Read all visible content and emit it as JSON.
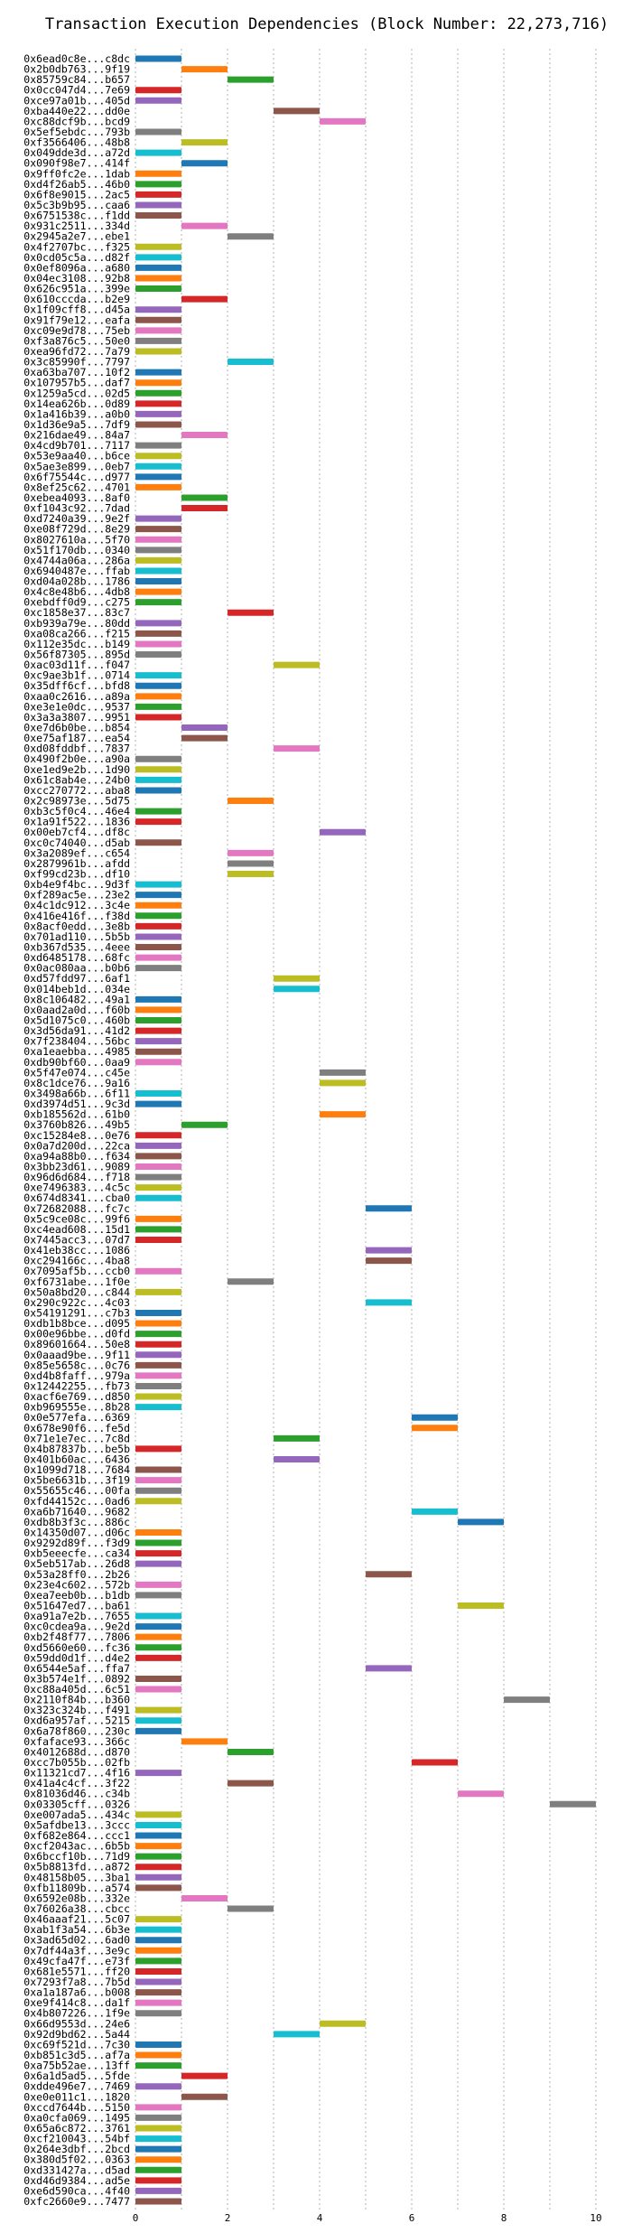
{
  "chart_data": {
    "type": "bar",
    "orientation": "horizontal",
    "title": "Transaction Execution Dependencies (Block Number: 22,273,716)",
    "xlim": [
      0,
      10
    ],
    "xticks": [
      0,
      2,
      4,
      6,
      8,
      10
    ],
    "grid": true,
    "palette": [
      "#1f77b4",
      "#ff7f0e",
      "#2ca02c",
      "#d62728",
      "#9467bd",
      "#8c564b",
      "#e377c2",
      "#7f7f7f",
      "#bcbd22",
      "#17becf"
    ],
    "rows": [
      {
        "label": "0x6ead0c8e...c8dc",
        "start": 0,
        "end": 1
      },
      {
        "label": "0x2b0db763...9f19",
        "start": 1,
        "end": 2
      },
      {
        "label": "0x85759c84...b657",
        "start": 2,
        "end": 3
      },
      {
        "label": "0x0cc047d4...7e69",
        "start": 0,
        "end": 1
      },
      {
        "label": "0xce97a01b...405d",
        "start": 0,
        "end": 1
      },
      {
        "label": "0xba440e22...dd0e",
        "start": 3,
        "end": 4
      },
      {
        "label": "0xc88dcf9b...bcd9",
        "start": 4,
        "end": 5
      },
      {
        "label": "0x5ef5ebdc...793b",
        "start": 0,
        "end": 1
      },
      {
        "label": "0xf3566406...48b8",
        "start": 1,
        "end": 2
      },
      {
        "label": "0x049dde3d...a72d",
        "start": 0,
        "end": 1
      },
      {
        "label": "0x090f98e7...414f",
        "start": 1,
        "end": 2
      },
      {
        "label": "0x9ff0fc2e...1dab",
        "start": 0,
        "end": 1
      },
      {
        "label": "0xd4f26ab5...46b0",
        "start": 0,
        "end": 1
      },
      {
        "label": "0x6f8e9015...2ac5",
        "start": 0,
        "end": 1
      },
      {
        "label": "0x5c3b9b95...caa6",
        "start": 0,
        "end": 1
      },
      {
        "label": "0x6751538c...f1dd",
        "start": 0,
        "end": 1
      },
      {
        "label": "0x931c2511...334d",
        "start": 1,
        "end": 2
      },
      {
        "label": "0x2945a2e7...ebe1",
        "start": 2,
        "end": 3
      },
      {
        "label": "0x4f2707bc...f325",
        "start": 0,
        "end": 1
      },
      {
        "label": "0x0cd05c5a...d82f",
        "start": 0,
        "end": 1
      },
      {
        "label": "0x0ef8096a...a680",
        "start": 0,
        "end": 1
      },
      {
        "label": "0x04ec3108...92b8",
        "start": 0,
        "end": 1
      },
      {
        "label": "0x626c951a...399e",
        "start": 0,
        "end": 1
      },
      {
        "label": "0x610cccda...b2e9",
        "start": 1,
        "end": 2
      },
      {
        "label": "0x1f09cff8...d45a",
        "start": 0,
        "end": 1
      },
      {
        "label": "0x91f79e12...eafa",
        "start": 0,
        "end": 1
      },
      {
        "label": "0xc09e9d78...75eb",
        "start": 0,
        "end": 1
      },
      {
        "label": "0xf3a876c5...50e0",
        "start": 0,
        "end": 1
      },
      {
        "label": "0xea96fd72...7a79",
        "start": 0,
        "end": 1
      },
      {
        "label": "0x3c85990f...7797",
        "start": 2,
        "end": 3
      },
      {
        "label": "0xa63ba707...10f2",
        "start": 0,
        "end": 1
      },
      {
        "label": "0x107957b5...daf7",
        "start": 0,
        "end": 1
      },
      {
        "label": "0x1259a5cd...02d5",
        "start": 0,
        "end": 1
      },
      {
        "label": "0x14ea626b...0d89",
        "start": 0,
        "end": 1
      },
      {
        "label": "0x1a416b39...a0b0",
        "start": 0,
        "end": 1
      },
      {
        "label": "0x1d36e9a5...7df9",
        "start": 0,
        "end": 1
      },
      {
        "label": "0x216dae49...84a7",
        "start": 1,
        "end": 2
      },
      {
        "label": "0x4cd9b701...7117",
        "start": 0,
        "end": 1
      },
      {
        "label": "0x53e9aa40...b6ce",
        "start": 0,
        "end": 1
      },
      {
        "label": "0x5ae3e899...0eb7",
        "start": 0,
        "end": 1
      },
      {
        "label": "0x6f75544c...d977",
        "start": 0,
        "end": 1
      },
      {
        "label": "0x8ef25c62...4701",
        "start": 0,
        "end": 1
      },
      {
        "label": "0xebea4093...8af0",
        "start": 1,
        "end": 2
      },
      {
        "label": "0xf1043c92...7dad",
        "start": 1,
        "end": 2
      },
      {
        "label": "0xd7240a39...9e2f",
        "start": 0,
        "end": 1
      },
      {
        "label": "0xe08f729d...8e29",
        "start": 0,
        "end": 1
      },
      {
        "label": "0x8027610a...5f70",
        "start": 0,
        "end": 1
      },
      {
        "label": "0x51f170db...0340",
        "start": 0,
        "end": 1
      },
      {
        "label": "0x4744a06a...286a",
        "start": 0,
        "end": 1
      },
      {
        "label": "0x6940487e...ffab",
        "start": 0,
        "end": 1
      },
      {
        "label": "0xd04a028b...1786",
        "start": 0,
        "end": 1
      },
      {
        "label": "0x4c8e48b6...4db8",
        "start": 0,
        "end": 1
      },
      {
        "label": "0xebdff0d9...c275",
        "start": 0,
        "end": 1
      },
      {
        "label": "0xc1858e37...83c7",
        "start": 2,
        "end": 3
      },
      {
        "label": "0xb939a79e...80dd",
        "start": 0,
        "end": 1
      },
      {
        "label": "0xa08ca266...f215",
        "start": 0,
        "end": 1
      },
      {
        "label": "0x112e35dc...b149",
        "start": 0,
        "end": 1
      },
      {
        "label": "0x56f87305...895d",
        "start": 0,
        "end": 1
      },
      {
        "label": "0xac03d11f...f047",
        "start": 3,
        "end": 4
      },
      {
        "label": "0xc9ae3b1f...0714",
        "start": 0,
        "end": 1
      },
      {
        "label": "0x35dff6cf...bfd8",
        "start": 0,
        "end": 1
      },
      {
        "label": "0xaa0c2616...a89a",
        "start": 0,
        "end": 1
      },
      {
        "label": "0xe3e1e0dc...9537",
        "start": 0,
        "end": 1
      },
      {
        "label": "0x3a3a3807...9951",
        "start": 0,
        "end": 1
      },
      {
        "label": "0xe7d6b0be...b854",
        "start": 1,
        "end": 2
      },
      {
        "label": "0xe75af187...ea54",
        "start": 1,
        "end": 2
      },
      {
        "label": "0xd08fddbf...7837",
        "start": 3,
        "end": 4
      },
      {
        "label": "0x490f2b0e...a90a",
        "start": 0,
        "end": 1
      },
      {
        "label": "0xe1ed9e2b...1d90",
        "start": 0,
        "end": 1
      },
      {
        "label": "0x61c8ab4e...24b0",
        "start": 0,
        "end": 1
      },
      {
        "label": "0xcc270772...aba8",
        "start": 0,
        "end": 1
      },
      {
        "label": "0x2c98973e...5d75",
        "start": 2,
        "end": 3
      },
      {
        "label": "0xb3c5f0c4...46e4",
        "start": 0,
        "end": 1
      },
      {
        "label": "0x1a91f522...1836",
        "start": 0,
        "end": 1
      },
      {
        "label": "0x00eb7cf4...df8c",
        "start": 4,
        "end": 5
      },
      {
        "label": "0xc0c74040...d5ab",
        "start": 0,
        "end": 1
      },
      {
        "label": "0x3a2089ef...c654",
        "start": 2,
        "end": 3
      },
      {
        "label": "0x2879961b...afdd",
        "start": 2,
        "end": 3
      },
      {
        "label": "0xf99cd23b...df10",
        "start": 2,
        "end": 3
      },
      {
        "label": "0xb4e9f4bc...9d3f",
        "start": 0,
        "end": 1
      },
      {
        "label": "0xf289ac5e...23e2",
        "start": 0,
        "end": 1
      },
      {
        "label": "0x4c1dc912...3c4e",
        "start": 0,
        "end": 1
      },
      {
        "label": "0x416e416f...f38d",
        "start": 0,
        "end": 1
      },
      {
        "label": "0x8acf0edd...3e8b",
        "start": 0,
        "end": 1
      },
      {
        "label": "0x701ad110...5b5b",
        "start": 0,
        "end": 1
      },
      {
        "label": "0xb367d535...4eee",
        "start": 0,
        "end": 1
      },
      {
        "label": "0xd6485178...68fc",
        "start": 0,
        "end": 1
      },
      {
        "label": "0x0ac080aa...b0b6",
        "start": 0,
        "end": 1
      },
      {
        "label": "0xd57fdd97...6af1",
        "start": 3,
        "end": 4
      },
      {
        "label": "0x014beb1d...034e",
        "start": 3,
        "end": 4
      },
      {
        "label": "0x8c106482...49a1",
        "start": 0,
        "end": 1
      },
      {
        "label": "0x0aad2a0d...f60b",
        "start": 0,
        "end": 1
      },
      {
        "label": "0x5d1075c0...460b",
        "start": 0,
        "end": 1
      },
      {
        "label": "0x3d56da91...41d2",
        "start": 0,
        "end": 1
      },
      {
        "label": "0x7f238404...56bc",
        "start": 0,
        "end": 1
      },
      {
        "label": "0xa1eaebba...4985",
        "start": 0,
        "end": 1
      },
      {
        "label": "0xdb90bf60...0aa9",
        "start": 0,
        "end": 1
      },
      {
        "label": "0x5f47e074...c45e",
        "start": 4,
        "end": 5
      },
      {
        "label": "0x8c1dce76...9a16",
        "start": 4,
        "end": 5
      },
      {
        "label": "0x3498a66b...6f11",
        "start": 0,
        "end": 1
      },
      {
        "label": "0xd3974d51...9c3d",
        "start": 0,
        "end": 1
      },
      {
        "label": "0xb185562d...61b0",
        "start": 4,
        "end": 5
      },
      {
        "label": "0x3760b826...49b5",
        "start": 1,
        "end": 2
      },
      {
        "label": "0xc15284e8...0e76",
        "start": 0,
        "end": 1
      },
      {
        "label": "0x0a7d200d...22ca",
        "start": 0,
        "end": 1
      },
      {
        "label": "0xa94a88b0...f634",
        "start": 0,
        "end": 1
      },
      {
        "label": "0x3bb23d61...9089",
        "start": 0,
        "end": 1
      },
      {
        "label": "0x96d6d684...f718",
        "start": 0,
        "end": 1
      },
      {
        "label": "0xe7496383...4c5c",
        "start": 0,
        "end": 1
      },
      {
        "label": "0x674d8341...cba0",
        "start": 0,
        "end": 1
      },
      {
        "label": "0x72682088...fc7c",
        "start": 5,
        "end": 6
      },
      {
        "label": "0x5c9ce08c...99f6",
        "start": 0,
        "end": 1
      },
      {
        "label": "0xc4ead608...15d1",
        "start": 0,
        "end": 1
      },
      {
        "label": "0x7445acc3...07d7",
        "start": 0,
        "end": 1
      },
      {
        "label": "0x41eb38cc...1086",
        "start": 5,
        "end": 6
      },
      {
        "label": "0xc294166c...4ba8",
        "start": 5,
        "end": 6
      },
      {
        "label": "0x7095af5b...ccb0",
        "start": 0,
        "end": 1
      },
      {
        "label": "0xf6731abe...1f0e",
        "start": 2,
        "end": 3
      },
      {
        "label": "0x50a8bd20...c844",
        "start": 0,
        "end": 1
      },
      {
        "label": "0x290c922c...4c03",
        "start": 5,
        "end": 6
      },
      {
        "label": "0x54191291...c7b3",
        "start": 0,
        "end": 1
      },
      {
        "label": "0xdb1b8bce...d095",
        "start": 0,
        "end": 1
      },
      {
        "label": "0x00e96bbe...d0fd",
        "start": 0,
        "end": 1
      },
      {
        "label": "0x89601664...50e8",
        "start": 0,
        "end": 1
      },
      {
        "label": "0x0aaad9be...9f11",
        "start": 0,
        "end": 1
      },
      {
        "label": "0x85e5658c...0c76",
        "start": 0,
        "end": 1
      },
      {
        "label": "0xd4b8faff...979a",
        "start": 0,
        "end": 1
      },
      {
        "label": "0x12442255...fb73",
        "start": 0,
        "end": 1
      },
      {
        "label": "0xacf6e769...d850",
        "start": 0,
        "end": 1
      },
      {
        "label": "0xb969555e...8b28",
        "start": 0,
        "end": 1
      },
      {
        "label": "0x0e577efa...6369",
        "start": 6,
        "end": 7
      },
      {
        "label": "0x678e90f6...fe5d",
        "start": 6,
        "end": 7
      },
      {
        "label": "0x71e1e7ec...7c8d",
        "start": 3,
        "end": 4
      },
      {
        "label": "0x4b87837b...be5b",
        "start": 0,
        "end": 1
      },
      {
        "label": "0x401b60ac...6436",
        "start": 3,
        "end": 4
      },
      {
        "label": "0x1099d718...7684",
        "start": 0,
        "end": 1
      },
      {
        "label": "0x5be6631b...3f19",
        "start": 0,
        "end": 1
      },
      {
        "label": "0x55655c46...00fa",
        "start": 0,
        "end": 1
      },
      {
        "label": "0xfd44152c...0ad6",
        "start": 0,
        "end": 1
      },
      {
        "label": "0xa6b71640...9682",
        "start": 6,
        "end": 7
      },
      {
        "label": "0xdb8b3f3c...886c",
        "start": 7,
        "end": 8
      },
      {
        "label": "0x14350d07...d06c",
        "start": 0,
        "end": 1
      },
      {
        "label": "0x9292d89f...f3d9",
        "start": 0,
        "end": 1
      },
      {
        "label": "0xb5eeecfe...ca34",
        "start": 0,
        "end": 1
      },
      {
        "label": "0x5eb517ab...26d8",
        "start": 0,
        "end": 1
      },
      {
        "label": "0x53a28ff0...2b26",
        "start": 5,
        "end": 6
      },
      {
        "label": "0x23e4c602...572b",
        "start": 0,
        "end": 1
      },
      {
        "label": "0xea7eeb0b...b1db",
        "start": 0,
        "end": 1
      },
      {
        "label": "0x51647ed7...ba61",
        "start": 7,
        "end": 8
      },
      {
        "label": "0xa91a7e2b...7655",
        "start": 0,
        "end": 1
      },
      {
        "label": "0xc0cdea9a...9e2d",
        "start": 0,
        "end": 1
      },
      {
        "label": "0xb2f48f77...7806",
        "start": 0,
        "end": 1
      },
      {
        "label": "0xd5660e60...fc36",
        "start": 0,
        "end": 1
      },
      {
        "label": "0x59dd0d1f...d4e2",
        "start": 0,
        "end": 1
      },
      {
        "label": "0x6544e5af...ffa7",
        "start": 5,
        "end": 6
      },
      {
        "label": "0x3b574e1f...0892",
        "start": 0,
        "end": 1
      },
      {
        "label": "0xc88a405d...6c51",
        "start": 0,
        "end": 1
      },
      {
        "label": "0x2110f84b...b360",
        "start": 8,
        "end": 9
      },
      {
        "label": "0x323c324b...f491",
        "start": 0,
        "end": 1
      },
      {
        "label": "0xd6a957af...5215",
        "start": 0,
        "end": 1
      },
      {
        "label": "0x6a78f860...230c",
        "start": 0,
        "end": 1
      },
      {
        "label": "0xfaface93...366c",
        "start": 1,
        "end": 2
      },
      {
        "label": "0x4012688d...d870",
        "start": 2,
        "end": 3
      },
      {
        "label": "0xcc7b055b...02fb",
        "start": 6,
        "end": 7
      },
      {
        "label": "0x11321cd7...4f16",
        "start": 0,
        "end": 1
      },
      {
        "label": "0x41a4c4cf...3f22",
        "start": 2,
        "end": 3
      },
      {
        "label": "0x81036d46...c34b",
        "start": 7,
        "end": 8
      },
      {
        "label": "0x03305cff...0326",
        "start": 9,
        "end": 10
      },
      {
        "label": "0xe007ada5...434c",
        "start": 0,
        "end": 1
      },
      {
        "label": "0x5afdbe13...3ccc",
        "start": 0,
        "end": 1
      },
      {
        "label": "0xf682e864...ccc1",
        "start": 0,
        "end": 1
      },
      {
        "label": "0xcf2043ac...6b5b",
        "start": 0,
        "end": 1
      },
      {
        "label": "0x6bccf10b...71d9",
        "start": 0,
        "end": 1
      },
      {
        "label": "0x5b8813fd...a872",
        "start": 0,
        "end": 1
      },
      {
        "label": "0x48158b05...3ba1",
        "start": 0,
        "end": 1
      },
      {
        "label": "0xfb11809b...a574",
        "start": 0,
        "end": 1
      },
      {
        "label": "0x6592e08b...332e",
        "start": 1,
        "end": 2
      },
      {
        "label": "0x76026a38...cbcc",
        "start": 2,
        "end": 3
      },
      {
        "label": "0x46aaaf21...5c07",
        "start": 0,
        "end": 1
      },
      {
        "label": "0xab1f3a54...6b3e",
        "start": 0,
        "end": 1
      },
      {
        "label": "0x3ad65d02...6ad0",
        "start": 0,
        "end": 1
      },
      {
        "label": "0x7df44a3f...3e9c",
        "start": 0,
        "end": 1
      },
      {
        "label": "0x49cfa47f...e73f",
        "start": 0,
        "end": 1
      },
      {
        "label": "0x681e5571...ff20",
        "start": 0,
        "end": 1
      },
      {
        "label": "0x7293f7a8...7b5d",
        "start": 0,
        "end": 1
      },
      {
        "label": "0xa1a187a6...b008",
        "start": 0,
        "end": 1
      },
      {
        "label": "0xe9f414c8...da1f",
        "start": 0,
        "end": 1
      },
      {
        "label": "0x4b807226...1f9e",
        "start": 0,
        "end": 1
      },
      {
        "label": "0x66d9553d...24e6",
        "start": 4,
        "end": 5
      },
      {
        "label": "0x92d9bd62...5a44",
        "start": 3,
        "end": 4
      },
      {
        "label": "0xc69f521d...7c30",
        "start": 0,
        "end": 1
      },
      {
        "label": "0xb851c3d5...af7a",
        "start": 0,
        "end": 1
      },
      {
        "label": "0xa75b52ae...13ff",
        "start": 0,
        "end": 1
      },
      {
        "label": "0x6a1d5ad5...5fde",
        "start": 1,
        "end": 2
      },
      {
        "label": "0xdde496e7...7469",
        "start": 0,
        "end": 1
      },
      {
        "label": "0xe0e011c1...1820",
        "start": 1,
        "end": 2
      },
      {
        "label": "0xccd7644b...5150",
        "start": 0,
        "end": 1
      },
      {
        "label": "0xa0cfa069...1495",
        "start": 0,
        "end": 1
      },
      {
        "label": "0x65a6c872...3761",
        "start": 0,
        "end": 1
      },
      {
        "label": "0xcf210043...54bf",
        "start": 0,
        "end": 1
      },
      {
        "label": "0x264e3dbf...2bcd",
        "start": 0,
        "end": 1
      },
      {
        "label": "0x380d5f02...0363",
        "start": 0,
        "end": 1
      },
      {
        "label": "0xd331427a...d5ad",
        "start": 0,
        "end": 1
      },
      {
        "label": "0xd46d9384...ad5e",
        "start": 0,
        "end": 1
      },
      {
        "label": "0xe6d590ca...4f40",
        "start": 0,
        "end": 1
      },
      {
        "label": "0xfc2660e9...7477",
        "start": 0,
        "end": 1
      }
    ]
  }
}
